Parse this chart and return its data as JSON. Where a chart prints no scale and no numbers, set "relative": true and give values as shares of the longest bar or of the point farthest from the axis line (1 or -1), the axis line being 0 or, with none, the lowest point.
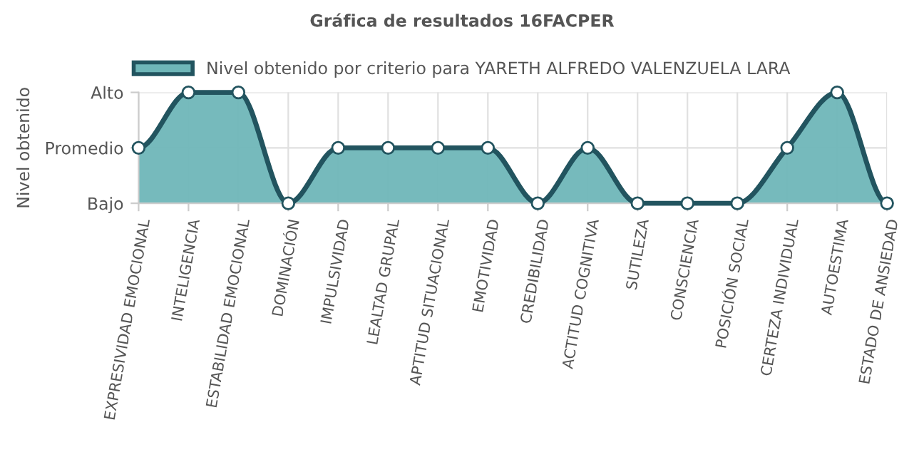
{
  "chart_data": {
    "type": "area",
    "title": "Gráfica de resultados 16FACPER",
    "ylabel": "Nivel obtenido",
    "categories": [
      "EXPRESIVIDAD EMOCIONAL",
      "INTELIGENCIA",
      "ESTABILIDAD EMOCIONAL",
      "DOMINACIÓN",
      "IMPULSIVIDAD",
      "LEALTAD GRUPAL",
      "APTITUD SITUACIONAL",
      "EMOTIVIDAD",
      "CREDIBILIDAD",
      "ACTITUD COGNITIVA",
      "SUTILEZA",
      "CONSCIENCIA",
      "POSICIÓN SOCIAL",
      "CERTEZA INDIVIDUAL",
      "AUTOESTIMA",
      "ESTADO DE ANSIEDAD"
    ],
    "series": [
      {
        "name": "Nivel obtenido por criterio para YARETH ALFREDO VALENZUELA LARA",
        "color": "#6fb6b8",
        "values": [
          0.5,
          1,
          1,
          0,
          0.5,
          0.5,
          0.5,
          0.5,
          0,
          0.5,
          0,
          0,
          0,
          0.5,
          1,
          0
        ]
      }
    ],
    "relative": true,
    "y_categories": [
      "Alto",
      "Promedio",
      "Bajo"
    ],
    "grid": true,
    "legend": "top",
    "marker": "circle",
    "line_style": "solid"
  }
}
